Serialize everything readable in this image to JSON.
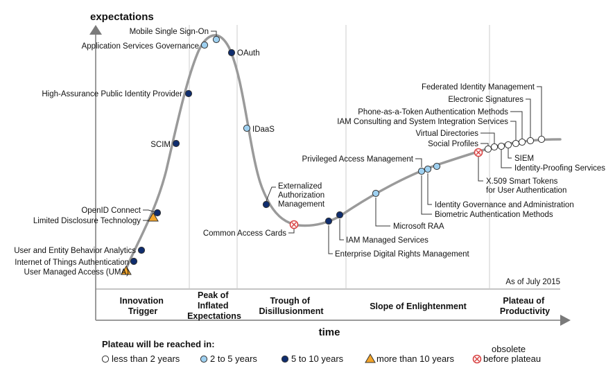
{
  "chart_data": {
    "type": "line",
    "title": "",
    "xlabel": "time",
    "ylabel": "expectations",
    "as_of": "As of July 2015",
    "phases": [
      [
        "Innovation",
        "Trigger"
      ],
      [
        "Peak of",
        "Inflated",
        "Expectations"
      ],
      [
        "Trough of",
        "Disillusionment"
      ],
      [
        "Slope of Enlightenment"
      ],
      [
        "Plateau of",
        "Productivity"
      ]
    ],
    "technologies": [
      {
        "label": "User Managed Access (UMA)",
        "category": "more_than_10"
      },
      {
        "label": "Internet of Things Authentication",
        "category": "5_to_10"
      },
      {
        "label": "User and Entity Behavior Analytics",
        "category": "5_to_10"
      },
      {
        "label": "Limited Disclosure Technology",
        "category": "more_than_10"
      },
      {
        "label": "OpenID Connect",
        "category": "5_to_10"
      },
      {
        "label": "SCIM",
        "category": "5_to_10"
      },
      {
        "label": "High-Assurance Public Identity Provider",
        "category": "5_to_10"
      },
      {
        "label": "Application Services Governance",
        "category": "2_to_5"
      },
      {
        "label": "Mobile Single Sign-On",
        "category": "2_to_5"
      },
      {
        "label": "OAuth",
        "category": "5_to_10"
      },
      {
        "label": "IDaaS",
        "category": "2_to_5"
      },
      {
        "label": "Externalized Authorization Management",
        "category": "5_to_10"
      },
      {
        "label": "Common Access Cards",
        "category": "obsolete"
      },
      {
        "label": "Enterprise Digital Rights Management",
        "category": "5_to_10"
      },
      {
        "label": "IAM Managed Services",
        "category": "5_to_10"
      },
      {
        "label": "Microsoft RAA",
        "category": "2_to_5"
      },
      {
        "label": "Privileged Access Management",
        "category": "2_to_5"
      },
      {
        "label": "Biometric Authentication Methods",
        "category": "2_to_5"
      },
      {
        "label": "Identity Governance and Administration",
        "category": "2_to_5"
      },
      {
        "label": "X.509 Smart Tokens for User Authentication",
        "category": "obsolete"
      },
      {
        "label": "Social Profiles",
        "category": "less_than_2"
      },
      {
        "label": "Virtual Directories",
        "category": "less_than_2"
      },
      {
        "label": "Identity-Proofing Services",
        "category": "less_than_2"
      },
      {
        "label": "SIEM",
        "category": "less_than_2"
      },
      {
        "label": "IAM Consulting and System Integration Services",
        "category": "less_than_2"
      },
      {
        "label": "Phone-as-a-Token Authentication Methods",
        "category": "less_than_2"
      },
      {
        "label": "Electronic Signatures",
        "category": "less_than_2"
      },
      {
        "label": "Federated Identity Management",
        "category": "less_than_2"
      }
    ],
    "legend": {
      "title": "Plateau will be reached in:",
      "placement": "bottom",
      "items": [
        {
          "key": "less_than_2",
          "label": "less than 2 years",
          "color": "#ffffff"
        },
        {
          "key": "2_to_5",
          "label": "2 to 5 years",
          "color": "#9ed0f0"
        },
        {
          "key": "5_to_10",
          "label": "5 to 10 years",
          "color": "#0f2d6e"
        },
        {
          "key": "more_than_10",
          "label": "more than 10 years",
          "color": "#f3a429"
        },
        {
          "key": "obsolete",
          "label": "before plateau",
          "header": "obsolete",
          "color": "#d94545"
        }
      ]
    },
    "curve_color": "#9a9a9a",
    "grid_color": "#cccccc"
  }
}
